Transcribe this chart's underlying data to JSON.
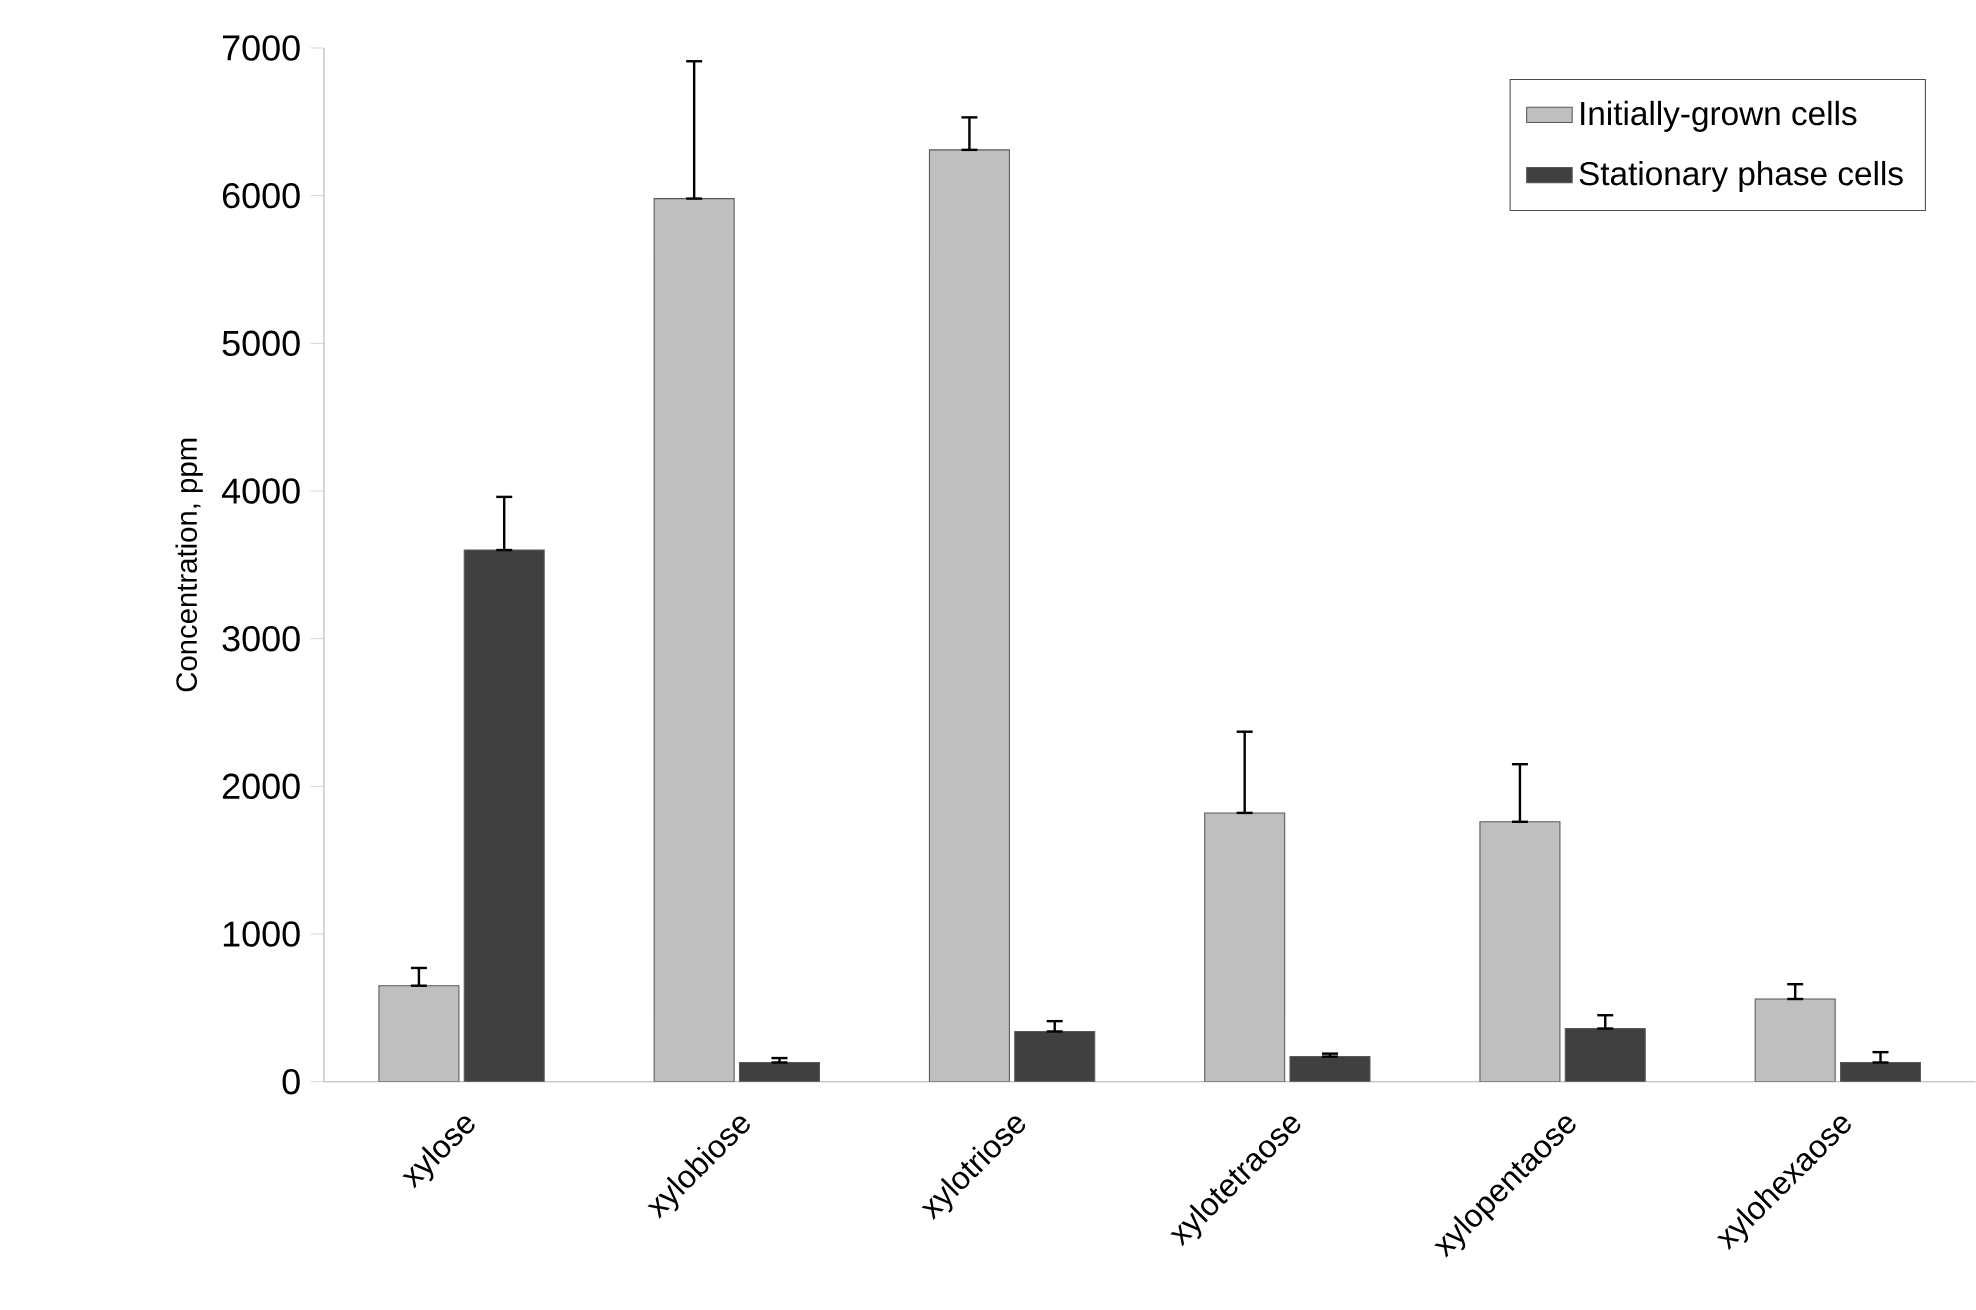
{
  "chart_data": {
    "type": "bar",
    "ylabel": "Concentration, ppm",
    "categories": [
      "xylose",
      "xylobiose",
      "xylotriose",
      "xylotetraose",
      "xylopentaose",
      "xylohexaose"
    ],
    "series": [
      {
        "name": "Initially-grown cells",
        "color": "#bfbfbf",
        "values": [
          650,
          5980,
          6310,
          1820,
          1760,
          560
        ],
        "errors": [
          [
            650,
            770
          ],
          [
            5980,
            6910
          ],
          [
            6310,
            6530
          ],
          [
            1820,
            2370
          ],
          [
            1760,
            2150
          ],
          [
            560,
            660
          ]
        ]
      },
      {
        "name": "Stationary phase cells",
        "color": "#404040",
        "values": [
          3600,
          130,
          340,
          170,
          360,
          130
        ],
        "errors": [
          [
            3600,
            3960
          ],
          [
            130,
            160
          ],
          [
            340,
            410
          ],
          [
            170,
            190
          ],
          [
            360,
            450
          ],
          [
            130,
            200
          ]
        ]
      }
    ],
    "ylim": [
      0,
      7000
    ],
    "yticks": [
      0,
      1000,
      2000,
      3000,
      4000,
      5000,
      6000,
      7000
    ],
    "grid": false,
    "legend": "top right"
  }
}
